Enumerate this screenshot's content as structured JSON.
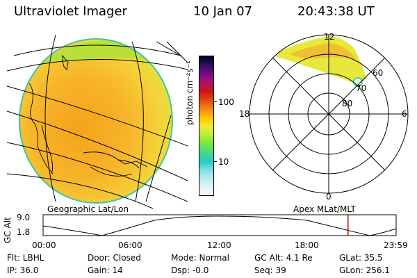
{
  "header": {
    "instrument": "Ultraviolet Imager",
    "date": "10 Jan 07",
    "time": "20:43:38 UT"
  },
  "colorbar": {
    "unit_label": "photon cm⁻²s⁻¹",
    "tick_100": "100",
    "tick_10": "10",
    "colors": [
      "#000033",
      "#2a0b4a",
      "#5a0c7a",
      "#8a0f8f",
      "#b0125c",
      "#cc1111",
      "#e03a10",
      "#f06a10",
      "#f89a10",
      "#ffcc00",
      "#f5e83a",
      "#c8f03a",
      "#7cea38",
      "#40d890",
      "#30c8c8",
      "#7fe0e6",
      "#b8ecf0",
      "#e2f4f6",
      "#f2f8f8"
    ]
  },
  "globe": {
    "label": "Geographic Lat/Lon"
  },
  "polar": {
    "label": "Apex MLat/MLT",
    "mlt_12": "12",
    "mlt_18": "18",
    "mlt_6": "6",
    "mlt_0": "0",
    "lat_60": "60",
    "lat_70": "70",
    "lat_80": "80"
  },
  "altitude_plot": {
    "ylabel": "GC Alt",
    "y_top": "9.0",
    "y_bottom": "1.8",
    "x_ticks": [
      "00:00",
      "06:00",
      "12:00",
      "18:00",
      "23:59"
    ],
    "current_time_marker_hours": 20.73
  },
  "footer": {
    "flt": "Flt: LBHL",
    "ip": "IP: 36.0",
    "door": "Door: Closed",
    "gain": "Gain: 14",
    "mode": "Mode: Normal",
    "dsp": "Dsp:   -0.0",
    "gc_alt": "GC Alt: 4.1 Re",
    "seq": "Seq: 39",
    "glat": "GLat:  35.5",
    "glon": "GLon: 256.1"
  }
}
